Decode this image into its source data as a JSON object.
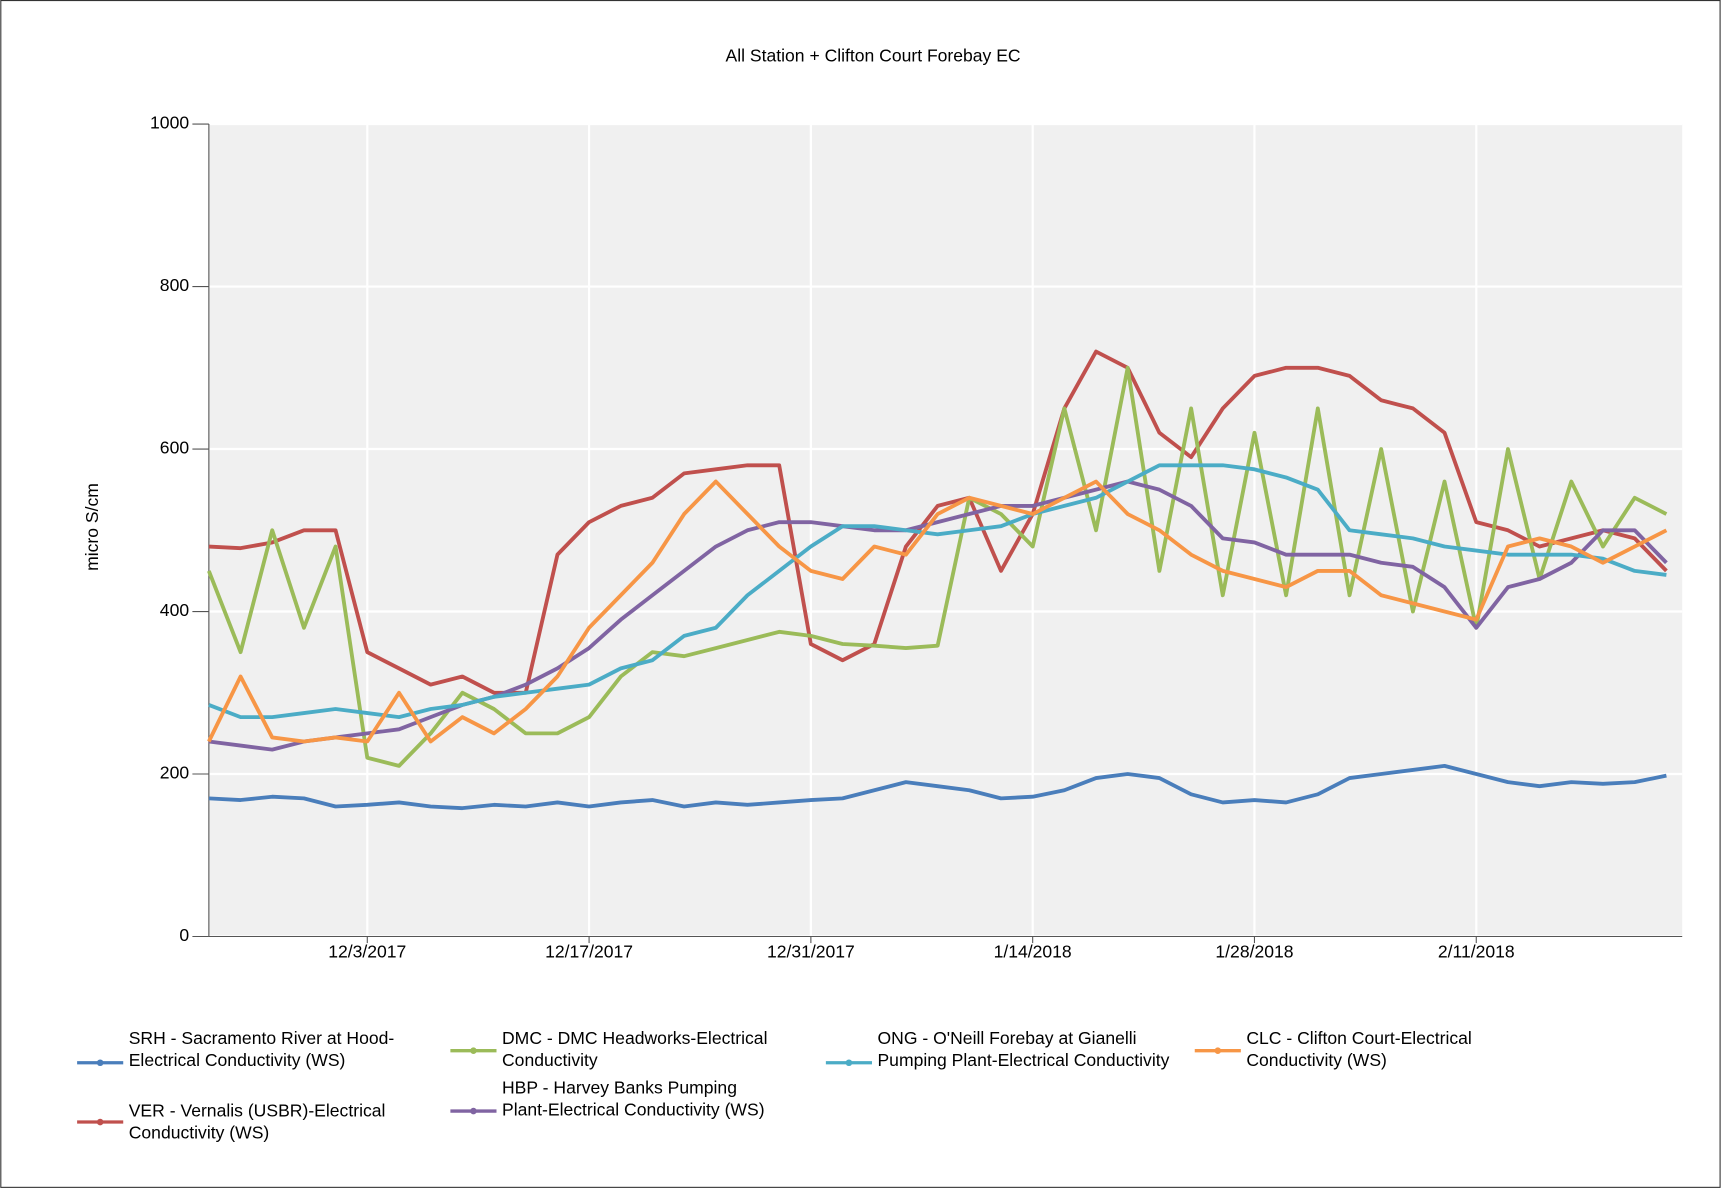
{
  "chart_data": {
    "type": "line",
    "title": "All Station + Clifton Court Forebay EC",
    "ylabel": "micro S/cm",
    "x": [
      "2017-11-23",
      "2017-11-25",
      "2017-11-27",
      "2017-11-29",
      "2017-12-01",
      "2017-12-03",
      "2017-12-05",
      "2017-12-07",
      "2017-12-09",
      "2017-12-11",
      "2017-12-13",
      "2017-12-15",
      "2017-12-17",
      "2017-12-19",
      "2017-12-21",
      "2017-12-23",
      "2017-12-25",
      "2017-12-27",
      "2017-12-29",
      "2017-12-31",
      "2018-01-02",
      "2018-01-04",
      "2018-01-06",
      "2018-01-08",
      "2018-01-10",
      "2018-01-12",
      "2018-01-14",
      "2018-01-16",
      "2018-01-18",
      "2018-01-20",
      "2018-01-22",
      "2018-01-24",
      "2018-01-26",
      "2018-01-28",
      "2018-01-30",
      "2018-02-01",
      "2018-02-03",
      "2018-02-05",
      "2018-02-07",
      "2018-02-09",
      "2018-02-11",
      "2018-02-13",
      "2018-02-15",
      "2018-02-17",
      "2018-02-19",
      "2018-02-21",
      "2018-02-23"
    ],
    "xlim": [
      "2017-11-23",
      "2018-02-24"
    ],
    "xticks": [
      {
        "value": "2017-12-03",
        "label": "12/3/2017"
      },
      {
        "value": "2017-12-17",
        "label": "12/17/2017"
      },
      {
        "value": "2017-12-31",
        "label": "12/31/2017"
      },
      {
        "value": "2018-01-14",
        "label": "1/14/2018"
      },
      {
        "value": "2018-01-28",
        "label": "1/28/2018"
      },
      {
        "value": "2018-02-11",
        "label": "2/11/2018"
      }
    ],
    "ylim": [
      0,
      1000
    ],
    "yticks": [
      0,
      200,
      400,
      600,
      800,
      1000
    ],
    "grid": true,
    "legend": "bottom",
    "series": [
      {
        "name": "SRH - Sacramento River at Hood-Electrical Conductivity (WS)",
        "color": "#4a7ebb",
        "values": [
          170,
          168,
          172,
          170,
          160,
          162,
          165,
          160,
          158,
          162,
          160,
          165,
          160,
          165,
          168,
          160,
          165,
          162,
          165,
          168,
          170,
          180,
          190,
          185,
          180,
          170,
          172,
          180,
          195,
          200,
          195,
          175,
          165,
          168,
          165,
          175,
          195,
          200,
          205,
          210,
          200,
          190,
          185,
          190,
          188,
          190,
          198
        ]
      },
      {
        "name": "VER - Vernalis (USBR)-Electrical Conductivity (WS)",
        "color": "#c0504d",
        "values": [
          480,
          478,
          485,
          500,
          500,
          350,
          330,
          310,
          320,
          300,
          300,
          470,
          510,
          530,
          540,
          570,
          575,
          580,
          580,
          360,
          340,
          360,
          480,
          530,
          540,
          450,
          520,
          650,
          720,
          700,
          620,
          590,
          650,
          690,
          700,
          700,
          690,
          660,
          650,
          620,
          510,
          500,
          480,
          490,
          500,
          490,
          450
        ]
      },
      {
        "name": "DMC - DMC Headworks-Electrical Conductivity",
        "color": "#9bbb59",
        "values": [
          450,
          350,
          500,
          380,
          480,
          220,
          210,
          250,
          300,
          280,
          250,
          250,
          270,
          320,
          350,
          345,
          355,
          365,
          375,
          370,
          360,
          358,
          355,
          358,
          540,
          520,
          480,
          650,
          500,
          700,
          450,
          650,
          420,
          620,
          420,
          650,
          420,
          600,
          400,
          560,
          380,
          600,
          440,
          560,
          480,
          540,
          520
        ]
      },
      {
        "name": "HBP - Harvey Banks Pumping Plant-Electrical Conductivity (WS)",
        "color": "#8064a2",
        "values": [
          240,
          235,
          230,
          240,
          245,
          250,
          255,
          270,
          285,
          295,
          310,
          330,
          355,
          390,
          420,
          450,
          480,
          500,
          510,
          510,
          505,
          500,
          500,
          510,
          520,
          530,
          530,
          540,
          550,
          560,
          550,
          530,
          490,
          485,
          470,
          470,
          470,
          460,
          455,
          430,
          380,
          430,
          440,
          460,
          500,
          500,
          460
        ]
      },
      {
        "name": "ONG - O'Neill Forebay at Gianelli Pumping Plant-Electrical Conductivity",
        "color": "#4bacc6",
        "values": [
          285,
          270,
          270,
          275,
          280,
          275,
          270,
          280,
          285,
          295,
          300,
          305,
          310,
          330,
          340,
          370,
          380,
          420,
          450,
          480,
          505,
          505,
          500,
          495,
          500,
          505,
          520,
          530,
          540,
          560,
          580,
          580,
          580,
          575,
          565,
          550,
          500,
          495,
          490,
          480,
          475,
          470,
          470,
          470,
          465,
          450,
          445
        ]
      },
      {
        "name": "CLC - Clifton Court-Electrical Conductivity (WS)",
        "color": "#f79646",
        "values": [
          240,
          320,
          245,
          240,
          245,
          240,
          300,
          240,
          270,
          250,
          280,
          320,
          380,
          420,
          460,
          520,
          560,
          520,
          480,
          450,
          440,
          480,
          470,
          520,
          540,
          530,
          520,
          540,
          560,
          520,
          500,
          470,
          450,
          440,
          430,
          450,
          450,
          420,
          410,
          400,
          390,
          480,
          490,
          480,
          460,
          480,
          500
        ]
      }
    ]
  }
}
